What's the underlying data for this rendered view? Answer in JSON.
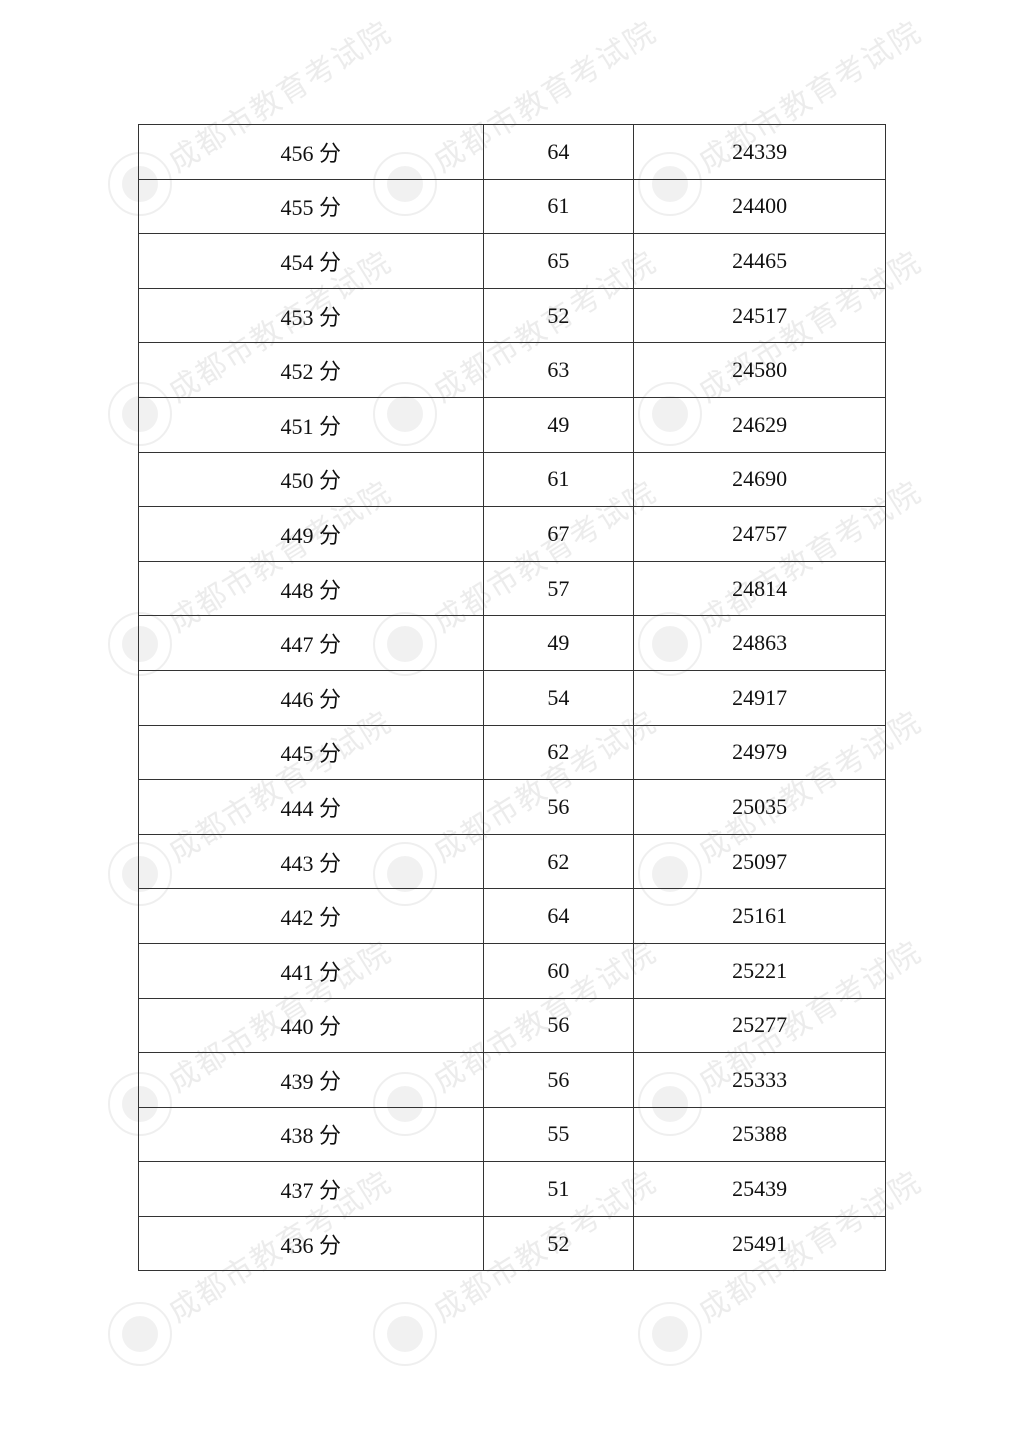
{
  "watermark": "成都市教育考试院",
  "table": {
    "rows": [
      {
        "score": "456 分",
        "count": "64",
        "cumulative": "24339"
      },
      {
        "score": "455 分",
        "count": "61",
        "cumulative": "24400"
      },
      {
        "score": "454 分",
        "count": "65",
        "cumulative": "24465"
      },
      {
        "score": "453 分",
        "count": "52",
        "cumulative": "24517"
      },
      {
        "score": "452 分",
        "count": "63",
        "cumulative": "24580"
      },
      {
        "score": "451 分",
        "count": "49",
        "cumulative": "24629"
      },
      {
        "score": "450 分",
        "count": "61",
        "cumulative": "24690"
      },
      {
        "score": "449 分",
        "count": "67",
        "cumulative": "24757"
      },
      {
        "score": "448 分",
        "count": "57",
        "cumulative": "24814"
      },
      {
        "score": "447 分",
        "count": "49",
        "cumulative": "24863"
      },
      {
        "score": "446 分",
        "count": "54",
        "cumulative": "24917"
      },
      {
        "score": "445 分",
        "count": "62",
        "cumulative": "24979"
      },
      {
        "score": "444 分",
        "count": "56",
        "cumulative": "25035"
      },
      {
        "score": "443 分",
        "count": "62",
        "cumulative": "25097"
      },
      {
        "score": "442 分",
        "count": "64",
        "cumulative": "25161"
      },
      {
        "score": "441 分",
        "count": "60",
        "cumulative": "25221"
      },
      {
        "score": "440 分",
        "count": "56",
        "cumulative": "25277"
      },
      {
        "score": "439 分",
        "count": "56",
        "cumulative": "25333"
      },
      {
        "score": "438 分",
        "count": "55",
        "cumulative": "25388"
      },
      {
        "score": "437 分",
        "count": "51",
        "cumulative": "25439"
      },
      {
        "score": "436 分",
        "count": "52",
        "cumulative": "25491"
      }
    ]
  }
}
